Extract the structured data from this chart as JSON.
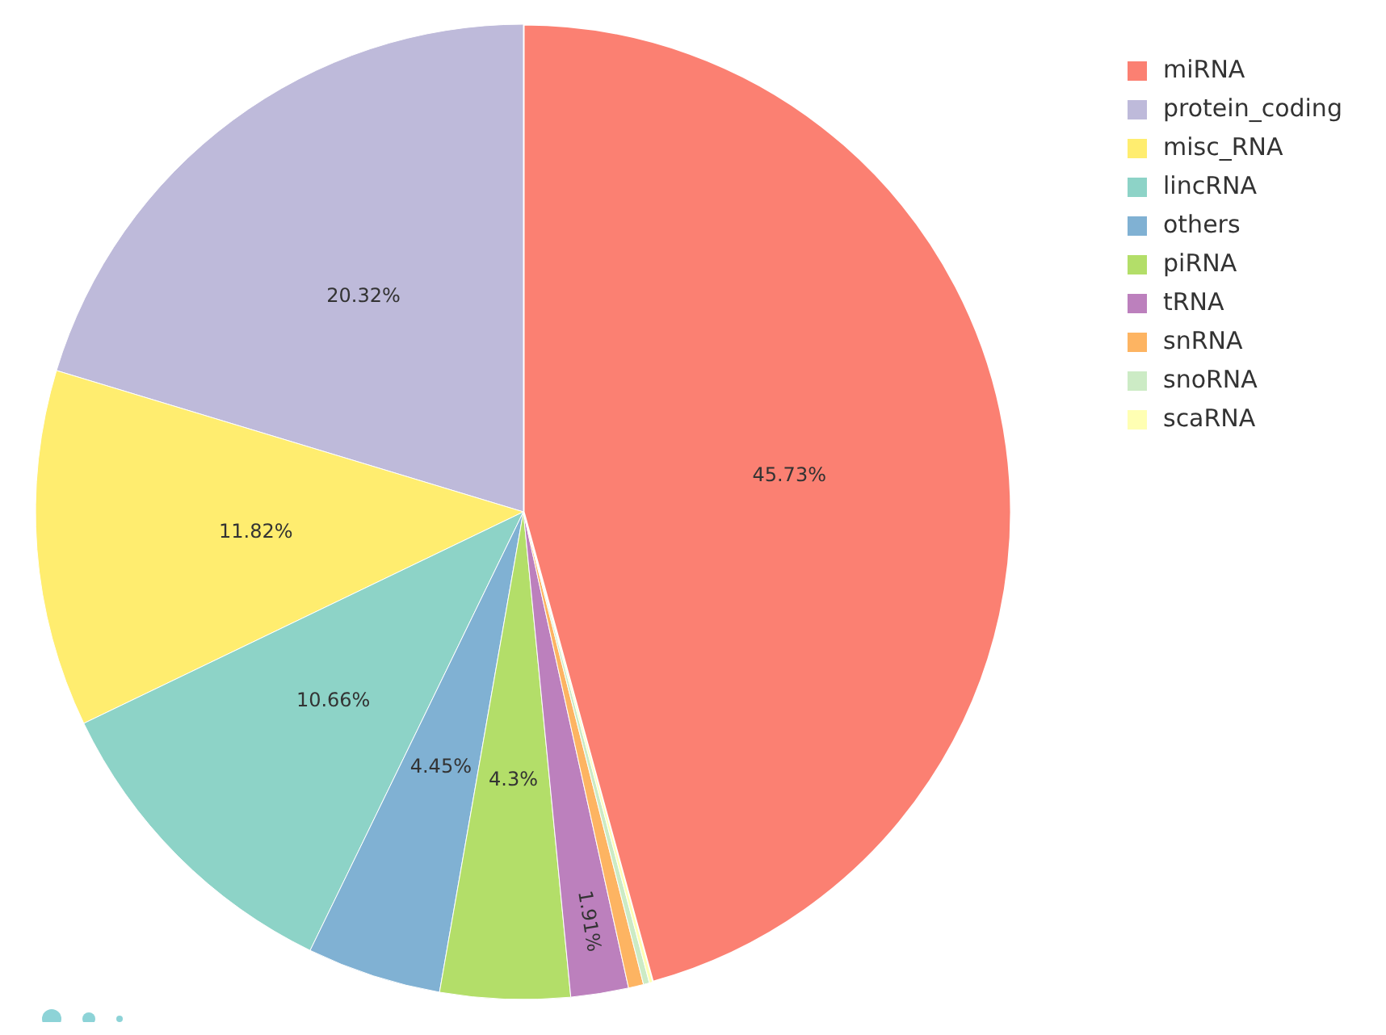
{
  "chart_data": {
    "type": "pie",
    "categories": [
      "miRNA",
      "protein_coding",
      "misc_RNA",
      "lincRNA",
      "others",
      "piRNA",
      "tRNA",
      "snRNA",
      "snoRNA",
      "scaRNA"
    ],
    "values": [
      45.73,
      20.32,
      11.82,
      10.66,
      4.45,
      4.3,
      1.91,
      0.5,
      0.2,
      0.11
    ],
    "value_labels": [
      "45.73%",
      "20.32%",
      "11.82%",
      "10.66%",
      "4.45%",
      "4.3%",
      "1.91%",
      null,
      null,
      null
    ],
    "colors": [
      "#fb8072",
      "#bebada",
      "#ffed6f",
      "#8dd3c7",
      "#80b1d3",
      "#b3de69",
      "#bc80bd",
      "#fdb462",
      "#ccebc5",
      "#ffffb3"
    ],
    "legend": "top right"
  }
}
